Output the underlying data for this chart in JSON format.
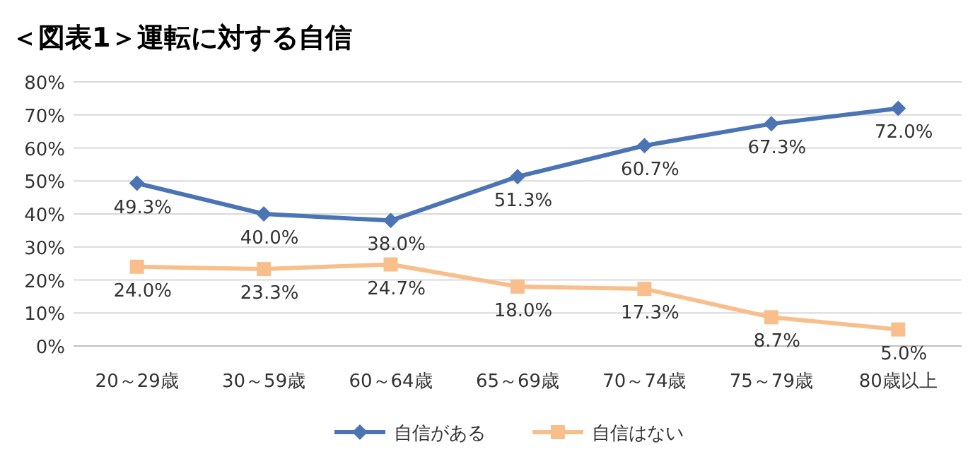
{
  "chart_data": {
    "type": "line",
    "title": "＜図表1＞運転に対する自信",
    "categories": [
      "20～29歳",
      "30～59歳",
      "60～64歳",
      "65～69歳",
      "70～74歳",
      "75～79歳",
      "80歳以上"
    ],
    "series": [
      {
        "name": "自信がある",
        "color": "#4a74b4",
        "marker": "diamond",
        "values": [
          49.3,
          40.0,
          38.0,
          51.3,
          60.7,
          67.3,
          72.0
        ],
        "value_labels": [
          "49.3%",
          "40.0%",
          "38.0%",
          "51.3%",
          "60.7%",
          "67.3%",
          "72.0%"
        ]
      },
      {
        "name": "自信はない",
        "color": "#f8bf8c",
        "marker": "square",
        "values": [
          24.0,
          23.3,
          24.7,
          18.0,
          17.3,
          8.7,
          5.0
        ],
        "value_labels": [
          "24.0%",
          "23.3%",
          "24.7%",
          "18.0%",
          "17.3%",
          "8.7%",
          "5.0%"
        ]
      }
    ],
    "ylim": [
      0,
      80
    ],
    "yticks": [
      {
        "value": 0,
        "label": "0%"
      },
      {
        "value": 10,
        "label": "10%"
      },
      {
        "value": 20,
        "label": "20%"
      },
      {
        "value": 30,
        "label": "30%"
      },
      {
        "value": 40,
        "label": "40%"
      },
      {
        "value": 50,
        "label": "50%"
      },
      {
        "value": 60,
        "label": "60%"
      },
      {
        "value": 70,
        "label": "70%"
      },
      {
        "value": 80,
        "label": "80%"
      }
    ],
    "grid": "y",
    "legend": "bottom"
  }
}
